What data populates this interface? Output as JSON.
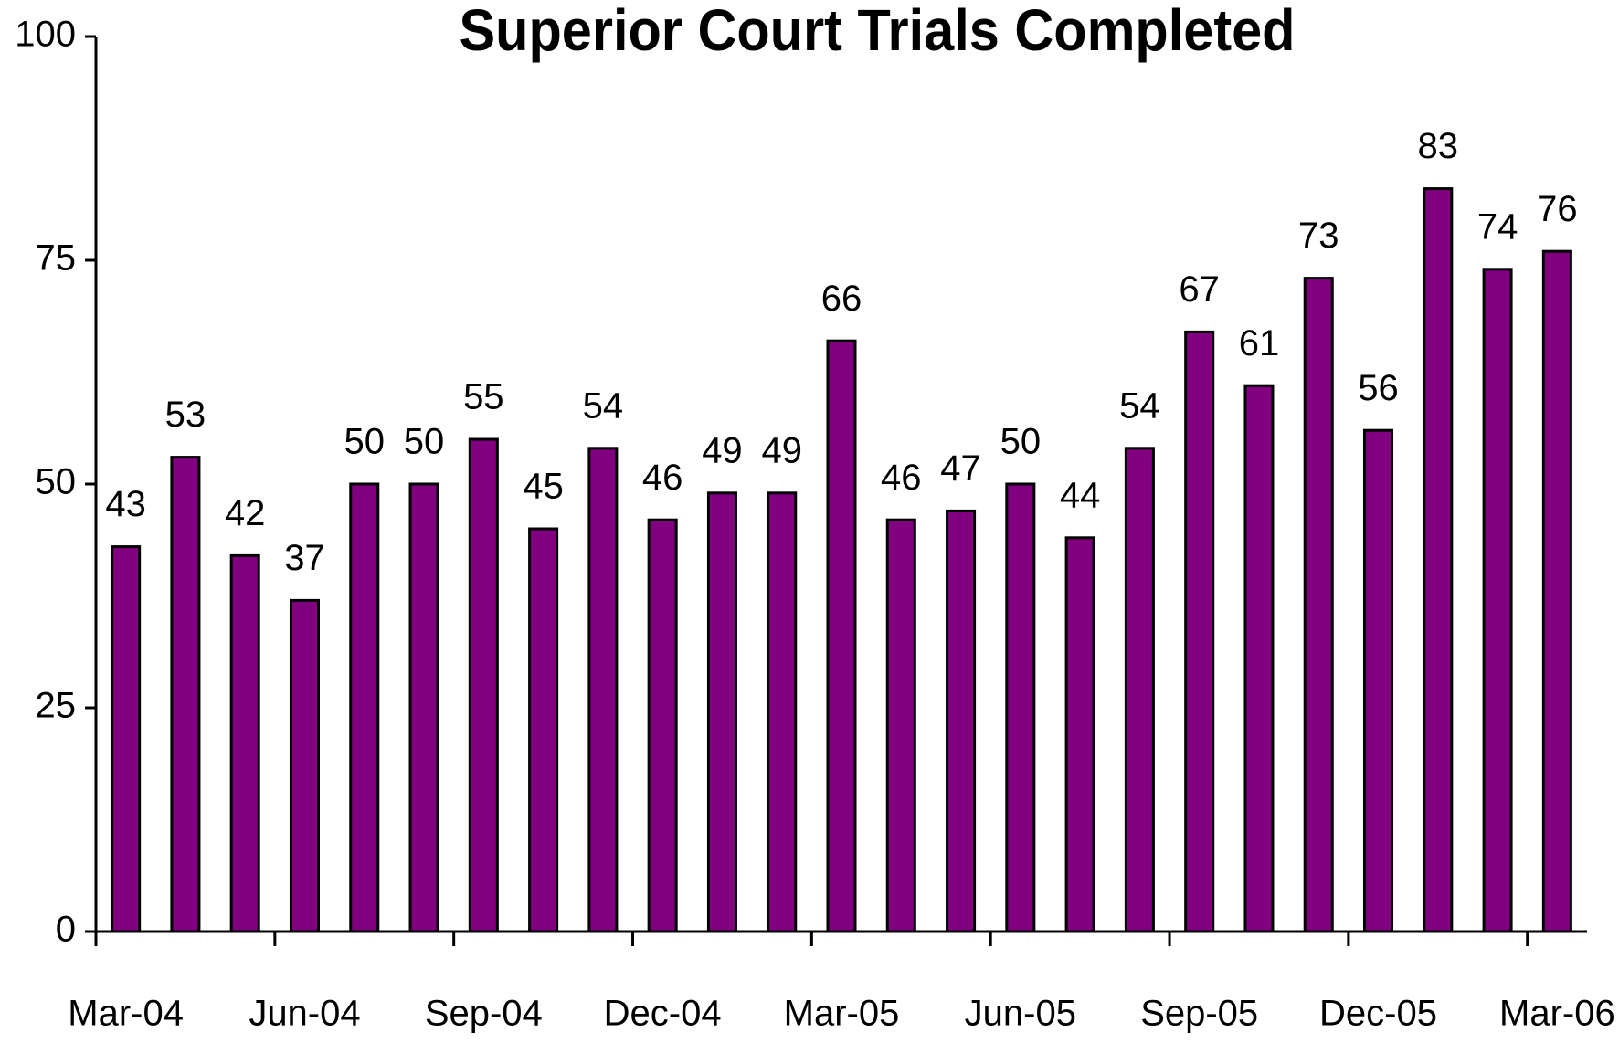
{
  "chart_data": {
    "type": "bar",
    "title": "Superior Court Trials Completed",
    "categories": [
      "Mar-04",
      null,
      null,
      "Jun-04",
      null,
      null,
      "Sep-04",
      null,
      null,
      "Dec-04",
      null,
      null,
      "Mar-05",
      null,
      null,
      "Jun-05",
      null,
      null,
      "Sep-05",
      null,
      null,
      "Dec-05",
      null,
      null,
      "Mar-06"
    ],
    "values": [
      43,
      53,
      42,
      37,
      50,
      50,
      55,
      45,
      54,
      46,
      49,
      49,
      66,
      46,
      47,
      50,
      44,
      54,
      67,
      61,
      73,
      56,
      83,
      74,
      76
    ],
    "color": "#800080",
    "ylim": [
      0,
      100
    ],
    "yticks": [
      0,
      25,
      50,
      75,
      100
    ],
    "grid": false
  }
}
